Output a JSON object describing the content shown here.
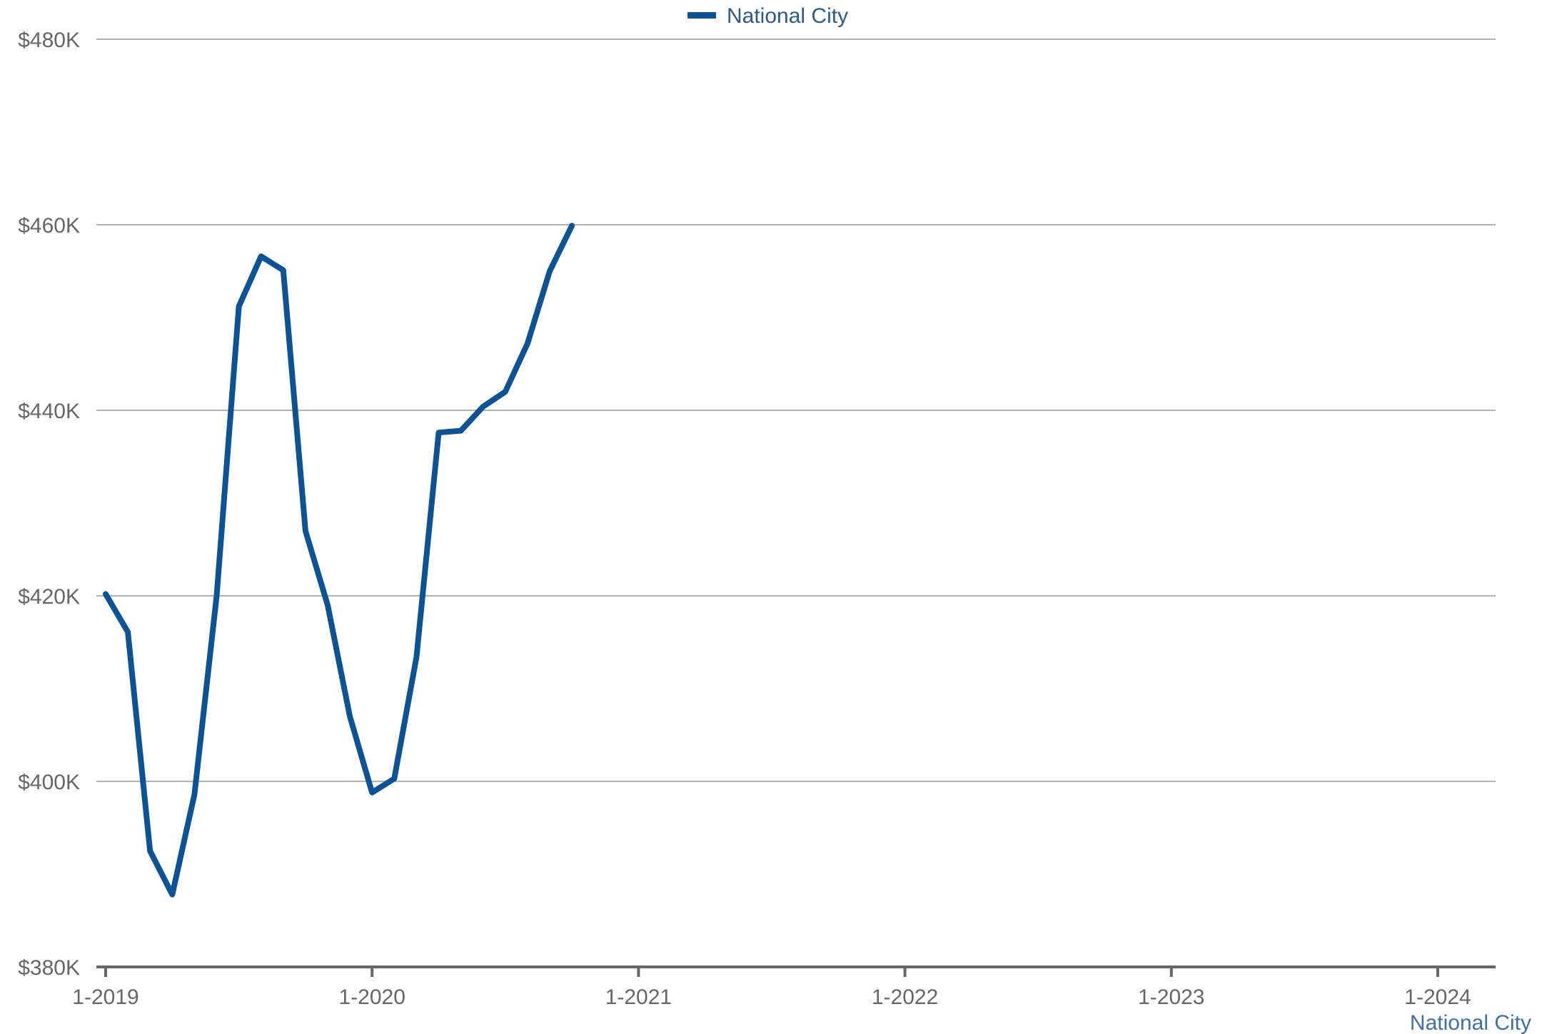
{
  "chart_data": {
    "type": "line",
    "title": "",
    "xlabel": "",
    "ylabel": "",
    "x_ticks": [
      "1-2019",
      "1-2020",
      "1-2021",
      "1-2022",
      "1-2023",
      "1-2024"
    ],
    "y_ticks": [
      "$380K",
      "$400K",
      "$420K",
      "$440K",
      "$460K",
      "$480K"
    ],
    "ylim": [
      380000,
      480000
    ],
    "xlim": [
      "2019-01",
      "2024-03"
    ],
    "grid": true,
    "legend_position": "top-center",
    "source_label": "National City",
    "series": [
      {
        "name": "National City",
        "color": "#0b5394",
        "points": [
          {
            "x": "2019-01",
            "y": 420200
          },
          {
            "x": "2019-02",
            "y": 416100
          },
          {
            "x": "2019-03",
            "y": 392500
          },
          {
            "x": "2019-04",
            "y": 387800
          },
          {
            "x": "2019-05",
            "y": 398600
          },
          {
            "x": "2019-06",
            "y": 420000
          },
          {
            "x": "2019-07",
            "y": 451200
          },
          {
            "x": "2019-08",
            "y": 456600
          },
          {
            "x": "2019-09",
            "y": 455100
          },
          {
            "x": "2019-10",
            "y": 427000
          },
          {
            "x": "2019-11",
            "y": 419000
          },
          {
            "x": "2019-12",
            "y": 407000
          },
          {
            "x": "2020-01",
            "y": 398800
          },
          {
            "x": "2020-02",
            "y": 400300
          },
          {
            "x": "2020-03",
            "y": 413400
          },
          {
            "x": "2020-04",
            "y": 437600
          },
          {
            "x": "2020-05",
            "y": 437800
          },
          {
            "x": "2020-06",
            "y": 440400
          },
          {
            "x": "2020-07",
            "y": 442000
          },
          {
            "x": "2020-08",
            "y": 447200
          },
          {
            "x": "2020-09",
            "y": 455000
          },
          {
            "x": "2020-10",
            "y": 459900
          }
        ]
      }
    ]
  }
}
